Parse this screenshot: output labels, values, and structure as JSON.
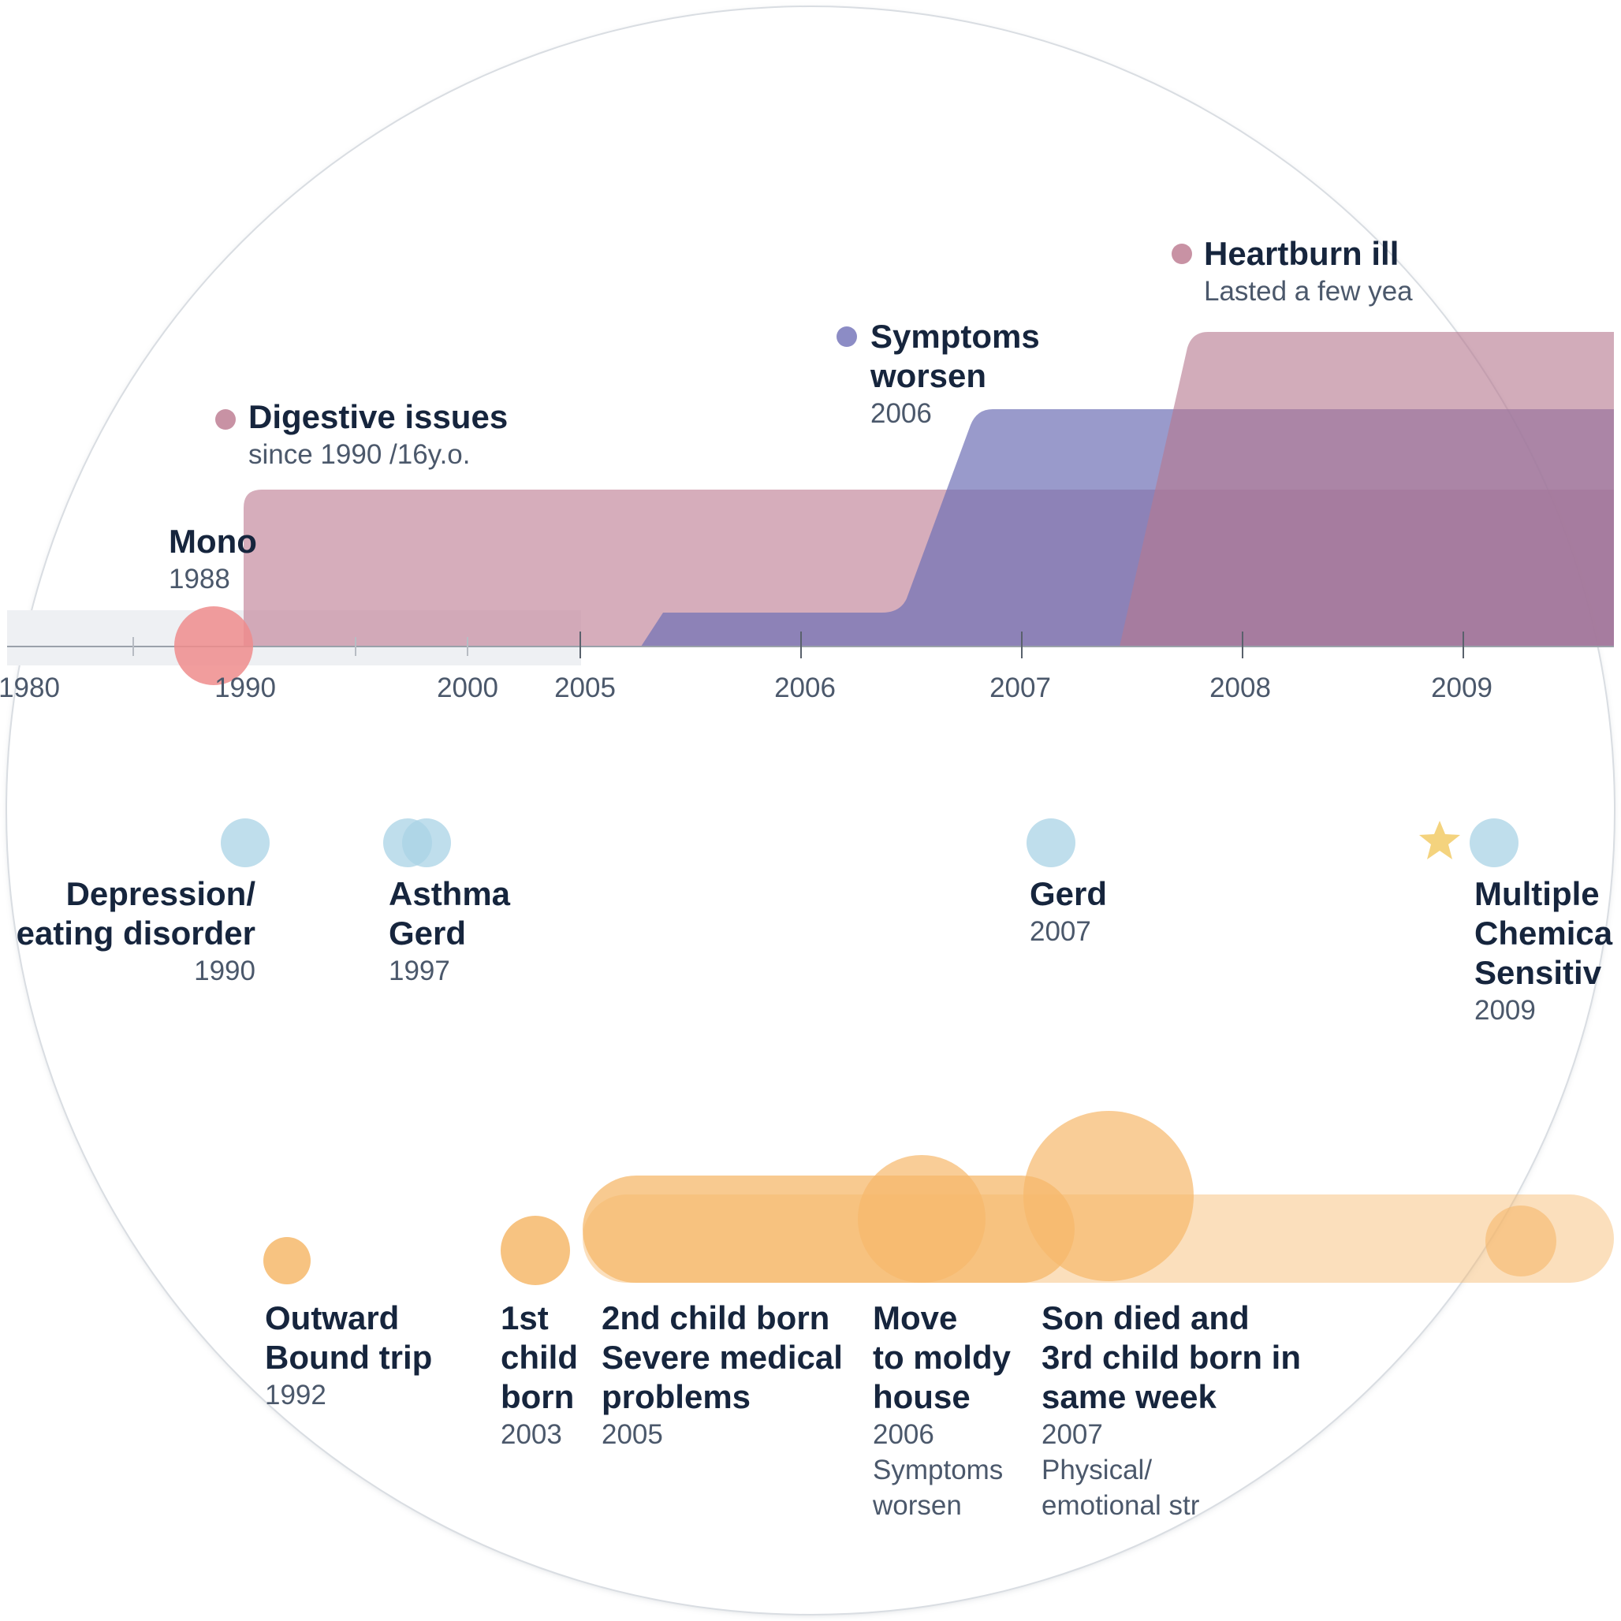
{
  "colors": {
    "digestive": "#c892a4",
    "symptoms": "#8c8cc5",
    "heartburn": "#c892a4",
    "mono": "#ee8c8c",
    "illness": "#a9d3e6",
    "life": "#f6b86b",
    "axis": "#9aa1aa",
    "early_band": "#eef0f3",
    "star": "#f4d37e"
  },
  "axis": {
    "ticks": [
      "1980",
      "1990",
      "2000",
      "2005",
      "2006",
      "2007",
      "2008",
      "2009"
    ]
  },
  "symptom_bands": [
    {
      "title": "Digestive issues",
      "detail": "since 1990 /16y.o."
    },
    {
      "title_lines": [
        "Symptoms",
        "worsen"
      ],
      "year": "2006"
    },
    {
      "title": "Heartburn ill",
      "detail": "Lasted a few yea"
    }
  ],
  "mono": {
    "title": "Mono",
    "year": "1988"
  },
  "illnesses": [
    {
      "title_lines": [
        "Depression/",
        "eating disorder"
      ],
      "year": "1990"
    },
    {
      "title_lines": [
        "Asthma",
        "Gerd"
      ],
      "year": "1997"
    },
    {
      "title_lines": [
        "Gerd"
      ],
      "year": "2007"
    },
    {
      "title_lines": [
        "Multiple",
        "Chemica",
        "Sensitiv"
      ],
      "year": "2009"
    }
  ],
  "life_events": [
    {
      "title_lines": [
        "Outward",
        "Bound trip"
      ],
      "year": "1992"
    },
    {
      "title_lines": [
        "1st",
        "child",
        "born"
      ],
      "year": "2003"
    },
    {
      "title_lines": [
        "2nd child born",
        "Severe medical",
        "problems"
      ],
      "year": "2005"
    },
    {
      "title_lines": [
        "Move",
        "to moldy",
        "house"
      ],
      "year": "2006",
      "note_lines": [
        "Symptoms",
        "worsen"
      ]
    },
    {
      "title_lines": [
        "Son died and",
        "3rd child born in",
        "same week"
      ],
      "year": "2007",
      "note_lines": [
        "Physical/",
        "emotional str"
      ]
    }
  ]
}
